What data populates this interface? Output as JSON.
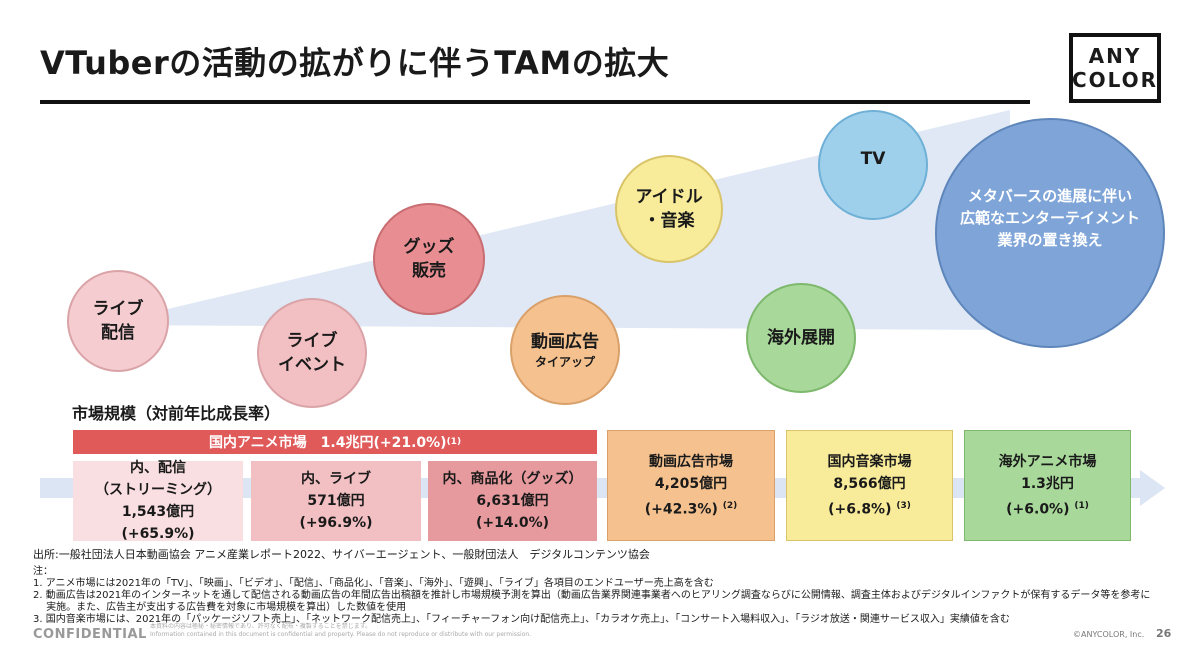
{
  "title": "VTuberの活動の拡がりに伴うTAMの拡大",
  "logo": {
    "line1": "ANY",
    "line2": "COLOR"
  },
  "circles": {
    "live_streaming": {
      "line1": "ライブ",
      "line2": "配信"
    },
    "live_event": {
      "line1": "ライブ",
      "line2": "イベント"
    },
    "goods": {
      "line1": "グッズ",
      "line2": "販売"
    },
    "video_ads": {
      "line1": "動画広告",
      "sub": "タイアップ"
    },
    "idol_music": {
      "line1": "アイドル",
      "line2": "・音楽"
    },
    "overseas": {
      "line1": "海外展開"
    },
    "tv": {
      "line1": "TV"
    },
    "metaverse": {
      "line1": "メタバースの進展に伴い",
      "line2": "広範なエンターテイメント",
      "line3": "業界の置き換え"
    }
  },
  "market": {
    "label": "市場規模（対前年比成長率）",
    "banner": {
      "text": "国内アニメ市場　1.4兆円(+21.0%)",
      "note": "(1)"
    },
    "boxes": [
      {
        "line1": "内、配信",
        "line2": "（ストリーミング）",
        "line3": "1,543億円",
        "line4": "(+65.9%)"
      },
      {
        "line1": "内、ライブ",
        "line2": "571億円",
        "line3": "(+96.9%)"
      },
      {
        "line1": "内、商品化（グッズ）",
        "line2": "6,631億円",
        "line3": "(+14.0%)"
      },
      {
        "line1": "動画広告市場",
        "line2": "4,205億円",
        "line3": "(+42.3%)",
        "note": "(2)"
      },
      {
        "line1": "国内音楽市場",
        "line2": "8,566億円",
        "line3": "(+6.8%)",
        "note": "(3)"
      },
      {
        "line1": "海外アニメ市場",
        "line2": "1.3兆円",
        "line3": "(+6.0%)",
        "note": "(1)"
      }
    ]
  },
  "source": "出所:一般社団法人日本動画協会 アニメ産業レポート2022、サイバーエージェント、一般財団法人　デジタルコンテンツ協会",
  "notes": {
    "heading": "注：",
    "n1": "1. アニメ市場には2021年の「TV」、「映画」、「ビデオ」、「配信」、「商品化」、「音楽」、「海外」、「遊興」、「ライブ」各項目のエンドユーザー売上高を含む",
    "n2a": "2. 動画広告は2021年のインターネットを通して配信される動画広告の年間広告出稿額を推計し市場規模予測を算出（動画広告業界関連事業者へのヒアリング調査ならびに公開情報、調査主体およびデジタルインファクトが保有するデータ等を参考に",
    "n2b": "　 実施。また、広告主が支出する広告費を対象に市場規模を算出）した数値を使用",
    "n3": "3. 国内音楽市場には、2021年の「パッケージソフト売上」、「ネットワーク配信売上」、「フィーチャーフォン向け配信売上」、「カラオケ売上」、「コンサート入場料収入」、「ラジオ放送・関連サービス収入」実績値を含む"
  },
  "footer": {
    "confidential": "CONFIDENTIAL",
    "small1": "本資料の内容は極秘・秘密情報であり、許可なく配布・複製することを禁じます。",
    "small2": "Information contained in this document is confidential and property. Please do not reproduce or distribute with our permission.",
    "copyright": "©ANYCOLOR, Inc.",
    "page": "26"
  },
  "colors": {
    "banner": "#e05a5a",
    "arrow": "#dde6f3",
    "metaverse": "#7fa5d8"
  }
}
